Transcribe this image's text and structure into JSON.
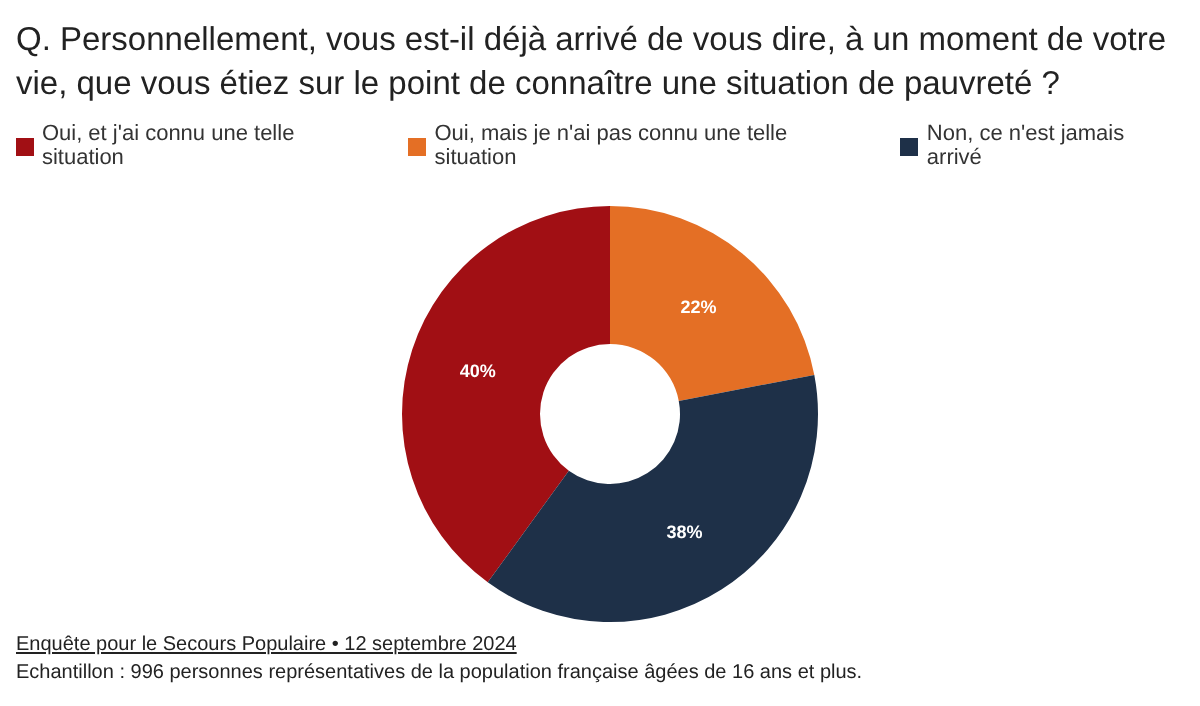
{
  "chart_data": {
    "type": "donut",
    "title": "Q. Personnellement, vous est-il déjà arrivé de vous dire, à un moment de votre vie, que vous étiez sur le point de connaître une situation de pauvreté ?",
    "categories": [
      "Oui, et j'ai connu une telle situation",
      "Oui, mais je n'ai pas connu une telle situation",
      "Non, ce n'est jamais arrivé"
    ],
    "values": [
      40,
      22,
      38
    ],
    "value_labels": [
      "40%",
      "22%",
      "38%"
    ],
    "colors": [
      "#a10f14",
      "#e46f25",
      "#1e3048"
    ],
    "legend": "top left",
    "annotations": [
      "Enquête pour le Secours Populaire • 12 septembre 2024",
      "Echantillon : 996 personnes représentatives de la population française âgées de 16 ans et plus."
    ]
  }
}
